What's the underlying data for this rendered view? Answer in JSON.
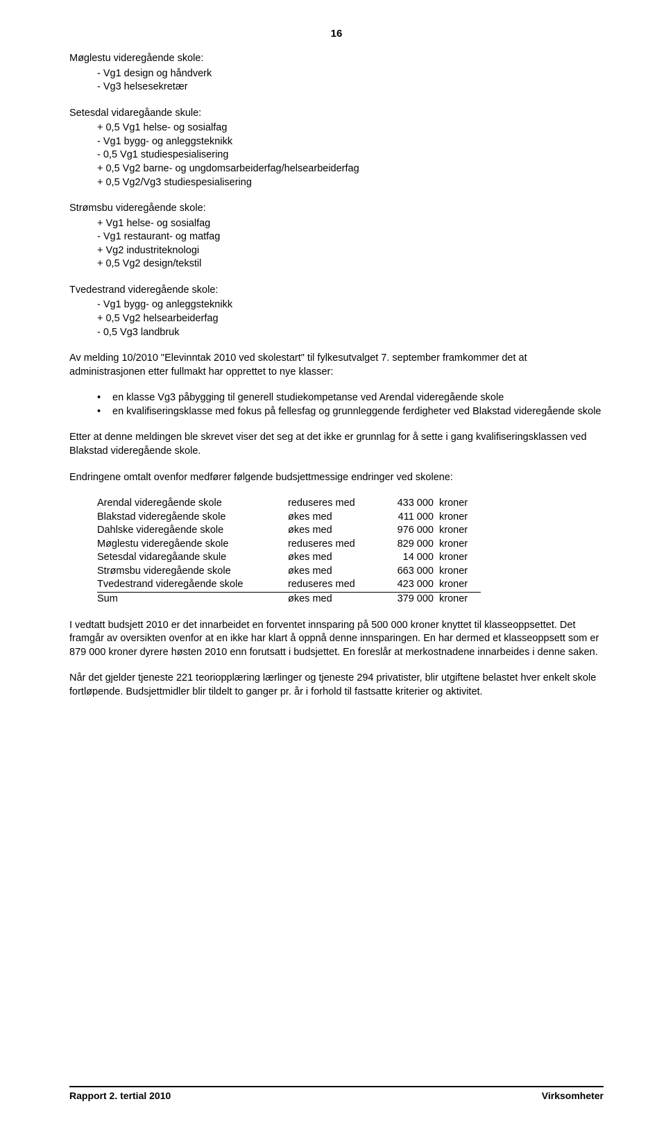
{
  "page_number": "16",
  "s1": {
    "title": "Møglestu videregående skole:",
    "items": [
      "- Vg1 design og håndverk",
      "- Vg3 helsesekretær"
    ]
  },
  "s2": {
    "title": "Setesdal vidaregåande skule:",
    "items": [
      "+ 0,5 Vg1 helse- og sosialfag",
      "- Vg1 bygg- og anleggsteknikk",
      "- 0,5 Vg1 studiespesialisering",
      "+ 0,5 Vg2 barne- og ungdomsarbeiderfag/helsearbeiderfag",
      "+ 0,5 Vg2/Vg3 studiespesialisering"
    ]
  },
  "s3": {
    "title": "Strømsbu videregående skole:",
    "items": [
      "+ Vg1 helse- og sosialfag",
      "- Vg1 restaurant- og matfag",
      "+ Vg2 industriteknologi",
      "+ 0,5 Vg2 design/tekstil"
    ]
  },
  "s4": {
    "title": "Tvedestrand videregående skole:",
    "items": [
      "- Vg1 bygg- og anleggsteknikk",
      "+ 0,5 Vg2 helsearbeiderfag",
      "- 0,5 Vg3 landbruk"
    ]
  },
  "p1": "Av melding 10/2010 \"Elevinntak 2010 ved skolestart\" til fylkesutvalget 7. september framkommer det at administrasjonen etter fullmakt har opprettet to nye klasser:",
  "bullets": [
    "en klasse Vg3 påbygging til generell studiekompetanse ved Arendal videregående skole",
    "en kvalifiseringsklasse med fokus på fellesfag og grunnleggende ferdigheter ved Blakstad videregående skole"
  ],
  "p2": "Etter at denne meldingen ble skrevet viser det seg at det ikke er grunnlag for å sette i gang kvalifiseringsklassen ved Blakstad videregående skole.",
  "p3": "Endringene omtalt ovenfor medfører følgende budsjettmessige endringer ved skolene:",
  "budget": {
    "rows": [
      {
        "c1": "Arendal videregående skole",
        "c2": "reduseres med",
        "c3": "433 000",
        "c4": "kroner",
        "u": false
      },
      {
        "c1": "Blakstad videregående skole",
        "c2": "økes med",
        "c3": "411 000",
        "c4": "kroner",
        "u": false
      },
      {
        "c1": "Dahlske videregående skole",
        "c2": "økes med",
        "c3": "976 000",
        "c4": "kroner",
        "u": false
      },
      {
        "c1": "Møglestu videregående skole",
        "c2": "reduseres med",
        "c3": "829 000",
        "c4": "kroner",
        "u": false
      },
      {
        "c1": "Setesdal vidaregåande skule",
        "c2": "økes med",
        "c3": "14 000",
        "c4": "kroner",
        "u": false
      },
      {
        "c1": "Strømsbu videregående skole",
        "c2": "økes med",
        "c3": "663 000",
        "c4": "kroner",
        "u": false
      },
      {
        "c1": "Tvedestrand videregående skole",
        "c2": "reduseres med",
        "c3": "423 000",
        "c4": "kroner",
        "u": true
      },
      {
        "c1": "Sum",
        "c2": "økes med",
        "c3": "379 000",
        "c4": "kroner",
        "u": false
      }
    ]
  },
  "p4": "I vedtatt budsjett 2010 er det innarbeidet en forventet innsparing på 500 000 kroner knyttet til klasseoppsettet. Det framgår av oversikten ovenfor at en ikke har klart å oppnå denne innsparingen. En har dermed et klasseoppsett som er 879 000 kroner dyrere høsten 2010 enn forutsatt i budsjettet. En foreslår at merkostnadene innarbeides i denne saken.",
  "p5": "Når det gjelder tjeneste 221 teoriopplæring lærlinger og tjeneste 294 privatister, blir utgiftene belastet hver enkelt skole fortløpende. Budsjettmidler blir tildelt to ganger pr. år i forhold til fastsatte kriterier og aktivitet.",
  "footer": {
    "left": "Rapport 2. tertial 2010",
    "right": "Virksomheter"
  }
}
